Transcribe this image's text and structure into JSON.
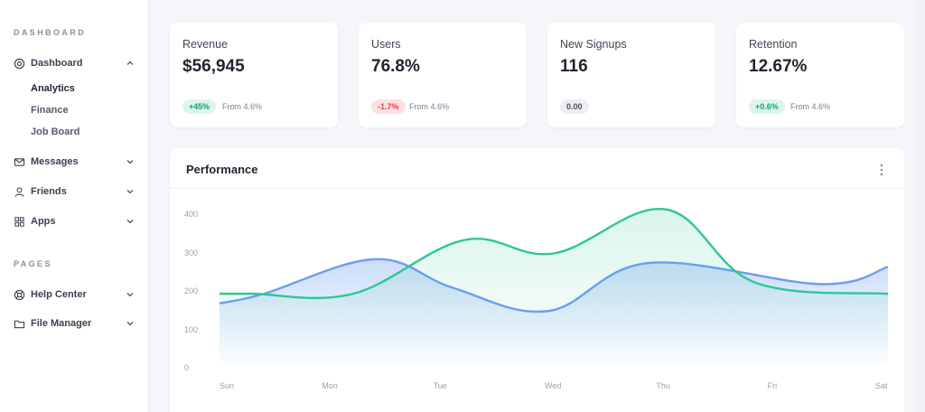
{
  "sidebar": {
    "section_dashboard": "DASHBOARD",
    "section_pages": "PAGES",
    "items": [
      {
        "label": "Dashboard",
        "icon": "dashboard-icon",
        "expanded": true
      },
      {
        "label": "Messages",
        "icon": "mail-icon"
      },
      {
        "label": "Friends",
        "icon": "user-icon"
      },
      {
        "label": "Apps",
        "icon": "grid-icon"
      },
      {
        "label": "Help Center",
        "icon": "lifebuoy-icon"
      },
      {
        "label": "File Manager",
        "icon": "folder-icon"
      }
    ],
    "sub_items": [
      "Analytics",
      "Finance",
      "Job Board"
    ]
  },
  "stats": [
    {
      "label": "Revenue",
      "value": "$56,945",
      "badge": "+45%",
      "trend": "up",
      "from": "From 4.6%"
    },
    {
      "label": "Users",
      "value": "76.8%",
      "badge": "-1.7%",
      "trend": "down",
      "from": "From 4.6%"
    },
    {
      "label": "New Signups",
      "value": "116",
      "badge": "0.00",
      "trend": "neutral",
      "from": ""
    },
    {
      "label": "Retention",
      "value": "12.67%",
      "badge": "+0.6%",
      "trend": "up",
      "from": "From 4.6%"
    }
  ],
  "performance": {
    "title": "Performance"
  },
  "colors": {
    "blue": "#6b9ef0",
    "green": "#2ec795",
    "up": "#18a06e",
    "down": "#e0404a"
  },
  "chart_data": {
    "type": "area",
    "categories": [
      "Sun",
      "Mon",
      "Tue",
      "Wed",
      "Thu",
      "Fri",
      "Sat"
    ],
    "ylim": [
      0,
      400
    ],
    "yticks": [
      "400",
      "300",
      "200",
      "100",
      "0"
    ],
    "grid": false,
    "series": [
      {
        "color": "#6b9ef0",
        "x": [
          0,
          0.4,
          1.4,
          2.1,
          2.95,
          3.85,
          5.4,
          6.0
        ],
        "values": [
          170,
          195,
          285,
          210,
          150,
          275,
          220,
          265
        ]
      },
      {
        "color": "#2ec795",
        "x": [
          0,
          0.3,
          1.2,
          2.2,
          3.0,
          4.0,
          4.8,
          6.0
        ],
        "values": [
          195,
          195,
          195,
          335,
          300,
          415,
          225,
          195
        ]
      }
    ]
  }
}
